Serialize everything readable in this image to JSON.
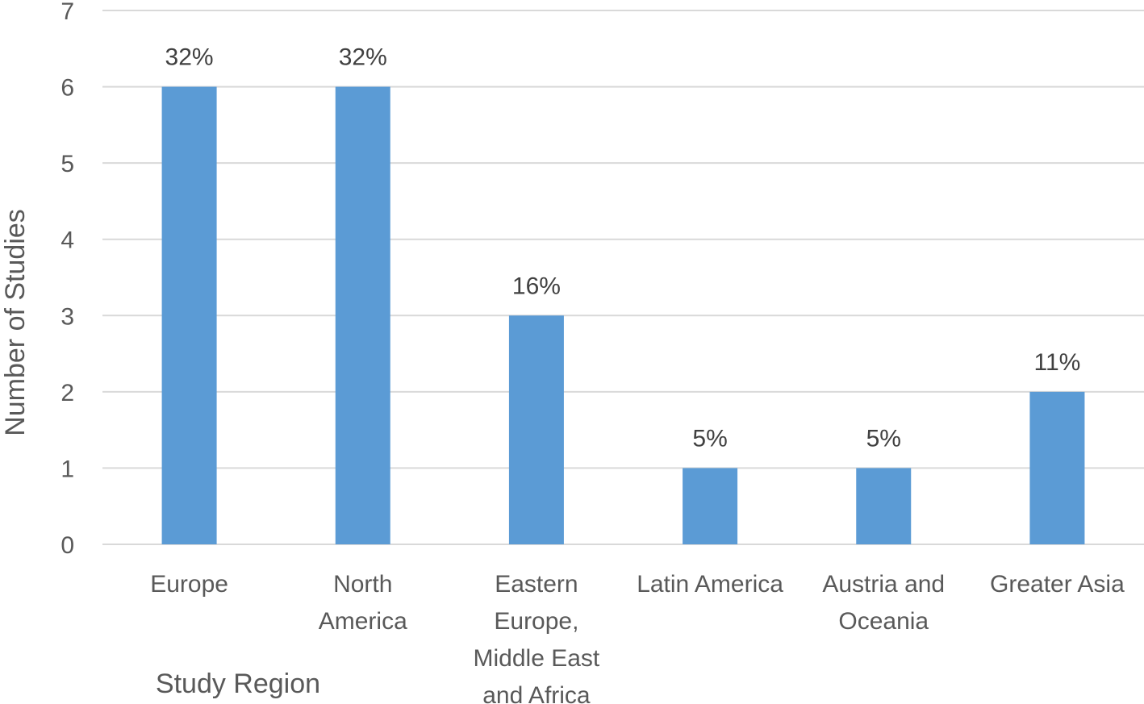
{
  "chart_data": {
    "type": "bar",
    "categories": [
      [
        "Europe"
      ],
      [
        "North",
        "America"
      ],
      [
        "Eastern",
        "Europe,",
        "Middle East",
        "and Africa"
      ],
      [
        "Latin America"
      ],
      [
        "Austria and",
        "Oceania"
      ],
      [
        "Greater Asia"
      ]
    ],
    "values": [
      6,
      6,
      3,
      1,
      1,
      2
    ],
    "data_labels": [
      "32%",
      "32%",
      "16%",
      "5%",
      "5%",
      "11%"
    ],
    "xlabel": "Study Region",
    "ylabel": "Number of Studies",
    "ylim": [
      0,
      7
    ],
    "yticks": [
      "0",
      "1",
      "2",
      "3",
      "4",
      "5",
      "6",
      "7"
    ],
    "grid": true,
    "legend": "none",
    "bar_color": "#5b9bd5"
  }
}
